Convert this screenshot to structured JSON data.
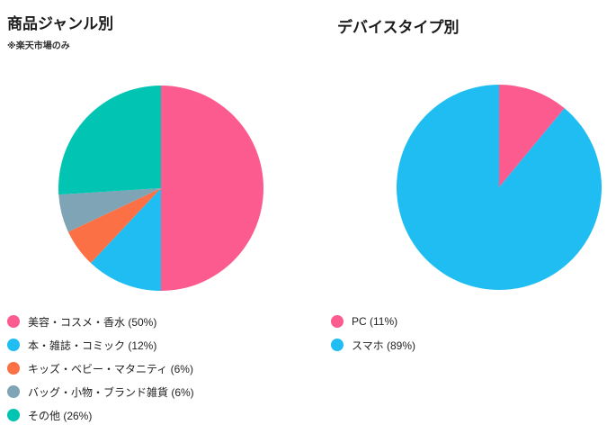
{
  "page": {
    "background_color": "#ffffff",
    "text_color": "#1c1c1c"
  },
  "chart_data": [
    {
      "type": "pie",
      "title": "商品ジャンル別",
      "subtitle": "※楽天市場のみ",
      "labels": [
        "美容・コスメ・香水",
        "本・雑誌・コミック",
        "キッズ・ベビー・マタニティ",
        "バッグ・小物・ブランド雑貨",
        "その他"
      ],
      "values": [
        50,
        12,
        6,
        6,
        26
      ],
      "unit": "%",
      "colors": [
        "#fb5b8e",
        "#20bdf2",
        "#fb7044",
        "#7fa4b5",
        "#02c4b2"
      ],
      "start_angle_deg": 0,
      "direction": "clockwise",
      "legend_position": "bottom-left",
      "legend_labels": [
        "美容・コスメ・香水 (50%)",
        "本・雑誌・コミック (12%)",
        "キッズ・ベビー・マタニティ (6%)",
        "バッグ・小物・ブランド雑貨 (6%)",
        "その他 (26%)"
      ]
    },
    {
      "type": "pie",
      "title": "デバイスタイプ別",
      "subtitle": "",
      "labels": [
        "PC",
        "スマホ"
      ],
      "values": [
        11,
        89
      ],
      "unit": "%",
      "colors": [
        "#fb5b8e",
        "#20bdf2"
      ],
      "start_angle_deg": 0,
      "direction": "clockwise",
      "legend_position": "bottom-left",
      "legend_labels": [
        "PC (11%)",
        "スマホ (89%)"
      ]
    }
  ]
}
